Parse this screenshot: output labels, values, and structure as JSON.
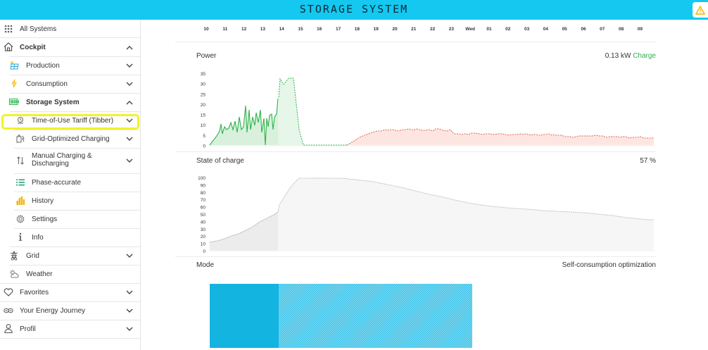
{
  "header": {
    "title": "STORAGE SYSTEM"
  },
  "sidebar": {
    "all_systems": "All Systems",
    "cockpit": "Cockpit",
    "production": "Production",
    "consumption": "Consumption",
    "storage_system": "Storage System",
    "time_of_use": "Time-of-Use Tariff (Tibber)",
    "grid_optimized": "Grid-Optimized Charging",
    "manual_charging_1": "Manual Charging &",
    "manual_charging_2": "Discharging",
    "phase_accurate": "Phase-accurate",
    "history": "History",
    "settings": "Settings",
    "info": "Info",
    "grid": "Grid",
    "weather": "Weather",
    "favorites": "Favorites",
    "energy_journey": "Your Energy Journey",
    "profil": "Profil"
  },
  "timeline": [
    "10",
    "11",
    "12",
    "13",
    "14",
    "15",
    "16",
    "17",
    "18",
    "19",
    "20",
    "21",
    "22",
    "23",
    "Wed",
    "01",
    "02",
    "03",
    "04",
    "05",
    "06",
    "07",
    "08",
    "09"
  ],
  "power": {
    "label": "Power",
    "value": "0.13 kW",
    "status": "Charge",
    "yticks": [
      "35",
      "30",
      "25",
      "20",
      "15",
      "10",
      "5",
      "0"
    ]
  },
  "soc": {
    "label": "State of charge",
    "value": "57 %",
    "yticks": [
      "100",
      "90",
      "80",
      "70",
      "60",
      "50",
      "40",
      "30",
      "20",
      "10",
      "0"
    ]
  },
  "mode": {
    "label": "Mode",
    "value": "Self-consumption optimization"
  },
  "colors": {
    "header": "#14c8f0",
    "charge": "#2cb34a",
    "discharge": "#e8604c",
    "mode_bar": "#14b4e0",
    "highlight": "#f2f22a"
  }
}
